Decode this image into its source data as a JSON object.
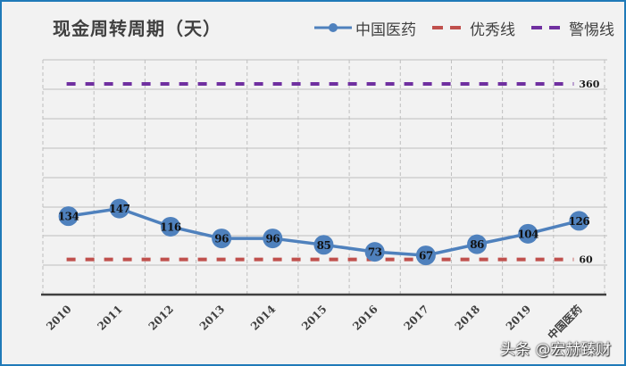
{
  "title": "现金周转周期（天）",
  "legend": [
    {
      "label": "中国医药",
      "color": "#4f81bd",
      "style": "line-marker"
    },
    {
      "label": "优秀线",
      "color": "#c0504d",
      "style": "dashed"
    },
    {
      "label": "警惕线",
      "color": "#7030a0",
      "style": "dashed"
    }
  ],
  "watermark": "头条 @宏赫臻财",
  "chart_data": {
    "type": "line",
    "title": "现金周转周期（天）",
    "xlabel": "",
    "ylabel": "",
    "categories": [
      "2010",
      "2011",
      "2012",
      "2013",
      "2014",
      "2015",
      "2016",
      "2017",
      "2018",
      "2019",
      "中国医药"
    ],
    "series": [
      {
        "name": "中国医药",
        "values": [
          134,
          147,
          116,
          96,
          96,
          85,
          73,
          67,
          86,
          104,
          126
        ],
        "color": "#4f81bd",
        "data_labels": true
      },
      {
        "name": "优秀线",
        "values": [
          60,
          60,
          60,
          60,
          60,
          60,
          60,
          60,
          60,
          60,
          60
        ],
        "color": "#c0504d",
        "dashed": true,
        "end_label": "60"
      },
      {
        "name": "警惕线",
        "values": [
          360,
          360,
          360,
          360,
          360,
          360,
          360,
          360,
          360,
          360,
          360
        ],
        "color": "#7030a0",
        "dashed": true,
        "end_label": "360"
      }
    ],
    "ylim": [
      0,
      400
    ],
    "y_axis_visible": false,
    "grid": true,
    "legend_position": "top-right",
    "x_tick_rotation": -45
  }
}
